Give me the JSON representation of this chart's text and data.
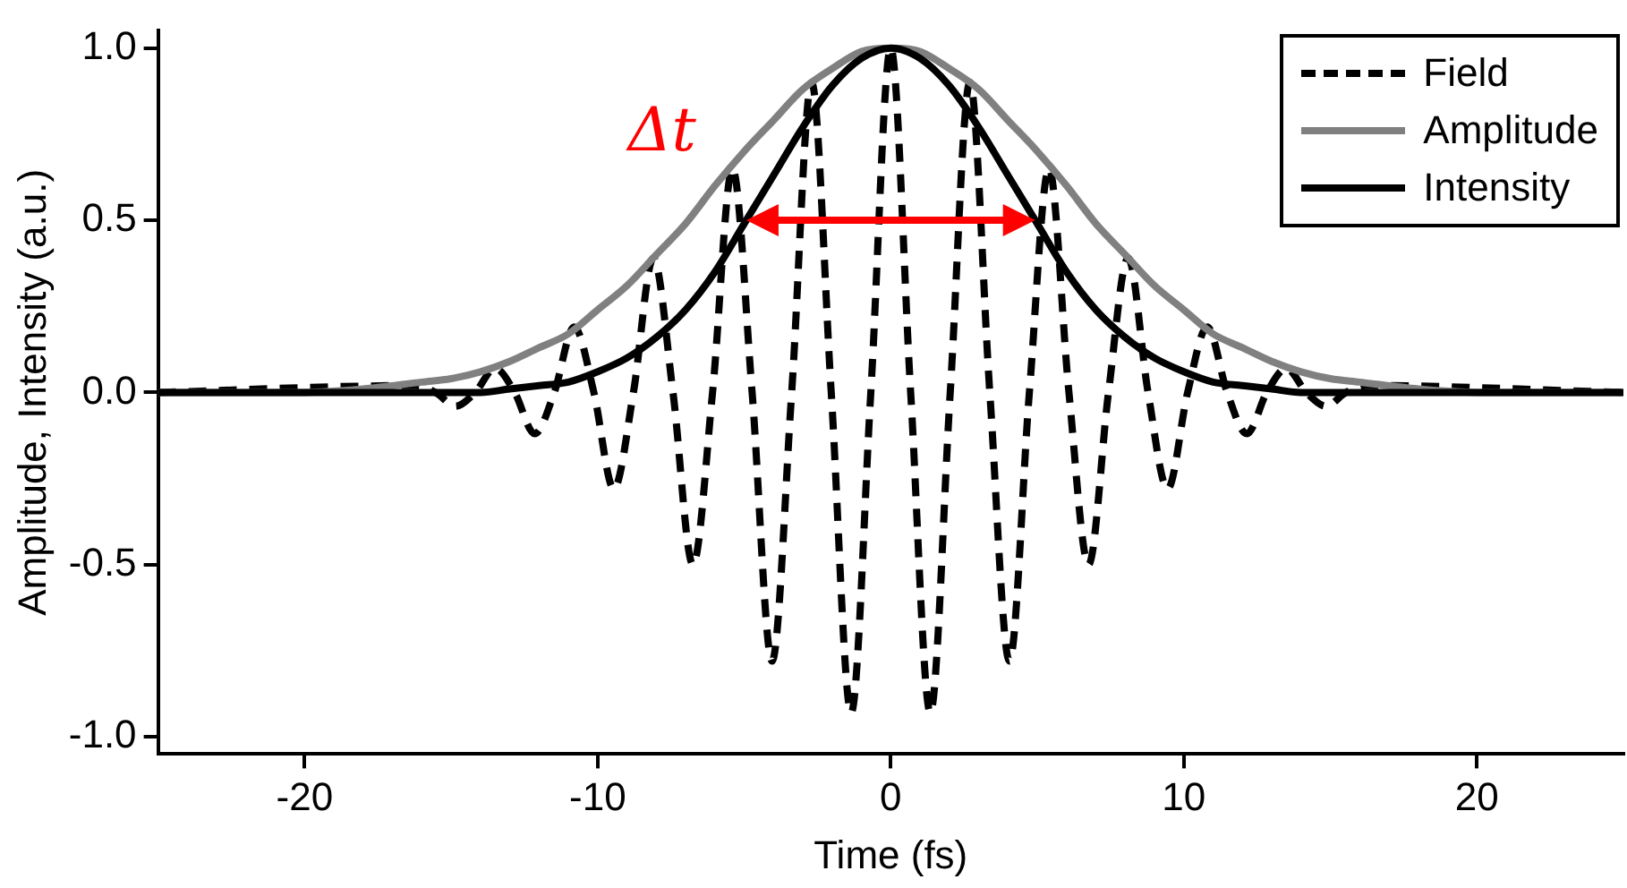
{
  "chart_data": {
    "type": "line",
    "xlabel": "Time (fs)",
    "ylabel": "Amplitude, Intensity (a.u.)",
    "xlim": [
      -25,
      25
    ],
    "xticks": [
      -20,
      -10,
      0,
      10,
      20
    ],
    "ylim": [
      -1.05,
      1.05
    ],
    "yticks": [
      {
        "value": -1,
        "label": "-1.0"
      },
      {
        "value": -0.5,
        "label": "-0.5"
      },
      {
        "value": 0,
        "label": "0.0"
      },
      {
        "value": 0.5,
        "label": "0.5"
      },
      {
        "value": 1,
        "label": "1.0"
      }
    ],
    "grid": false,
    "legend": "top right",
    "marker": "none",
    "annotations": [
      "Δt"
    ],
    "series": [
      {
        "name": "Field",
        "color": "#000000",
        "line_style": "dashed",
        "x": [
          -25,
          -16.2,
          -15.53,
          -14.85,
          -14.18,
          -13.5,
          -12.83,
          -12.15,
          -11.48,
          -10.8,
          -10.13,
          -9.45,
          -8.78,
          -8.1,
          -7.43,
          -6.75,
          -6.08,
          -5.4,
          -4.73,
          -4.05,
          -3.38,
          -2.7,
          -2.03,
          -1.35,
          -0.68,
          0,
          0.68,
          1.35,
          2.03,
          2.7,
          3.38,
          4.05,
          4.73,
          5.4,
          6.08,
          6.75,
          7.43,
          8.1,
          8.78,
          9.45,
          10.13,
          10.8,
          11.48,
          12.15,
          12.83,
          13.5,
          14.18,
          14.85,
          15.53,
          16.2,
          25
        ],
        "values": [
          0,
          0.02,
          0,
          -0.04,
          0,
          0.07,
          0,
          -0.12,
          0,
          0.19,
          0,
          -0.28,
          0,
          0.39,
          0,
          -0.5,
          0,
          0.65,
          0,
          -0.78,
          0,
          0.9,
          0,
          -0.93,
          0,
          1,
          0,
          -0.93,
          0,
          0.9,
          0,
          -0.78,
          0,
          0.65,
          0,
          -0.5,
          0,
          0.39,
          0,
          -0.28,
          0,
          0.19,
          0,
          -0.12,
          0,
          0.07,
          0,
          -0.04,
          0,
          0.02,
          0
        ]
      },
      {
        "name": "Amplitude",
        "color": "#808080",
        "line_style": "solid",
        "x": [
          -25,
          -20,
          -18,
          -16,
          -15,
          -14,
          -13,
          -12,
          -11,
          -10,
          -9,
          -8,
          -7,
          -6,
          -5,
          -4,
          -3,
          -2,
          -1,
          0,
          1,
          2,
          3,
          4,
          5,
          6,
          7,
          8,
          9,
          10,
          11,
          12,
          13,
          14,
          15,
          16,
          18,
          20,
          25
        ],
        "values": [
          0,
          0,
          0.01,
          0.03,
          0.04,
          0.06,
          0.09,
          0.13,
          0.17,
          0.24,
          0.31,
          0.4,
          0.49,
          0.6,
          0.7,
          0.79,
          0.88,
          0.94,
          0.99,
          1,
          0.99,
          0.94,
          0.88,
          0.79,
          0.7,
          0.6,
          0.49,
          0.4,
          0.31,
          0.24,
          0.17,
          0.13,
          0.09,
          0.06,
          0.04,
          0.03,
          0.01,
          0,
          0
        ]
      },
      {
        "name": "Intensity",
        "color": "#000000",
        "line_style": "solid",
        "x": [
          -25,
          -16,
          -14,
          -13,
          -12,
          -11,
          -10,
          -9,
          -8,
          -7,
          -6,
          -5,
          -4,
          -3,
          -2,
          -1,
          0,
          1,
          2,
          3,
          4,
          5,
          6,
          7,
          8,
          9,
          10,
          11,
          12,
          13,
          14,
          16,
          25
        ],
        "values": [
          0,
          0,
          0,
          0.01,
          0.02,
          0.03,
          0.06,
          0.1,
          0.16,
          0.24,
          0.35,
          0.49,
          0.63,
          0.77,
          0.89,
          0.97,
          1,
          0.97,
          0.89,
          0.77,
          0.63,
          0.49,
          0.35,
          0.24,
          0.16,
          0.1,
          0.06,
          0.03,
          0.02,
          0.01,
          0,
          0,
          0
        ]
      }
    ]
  }
}
